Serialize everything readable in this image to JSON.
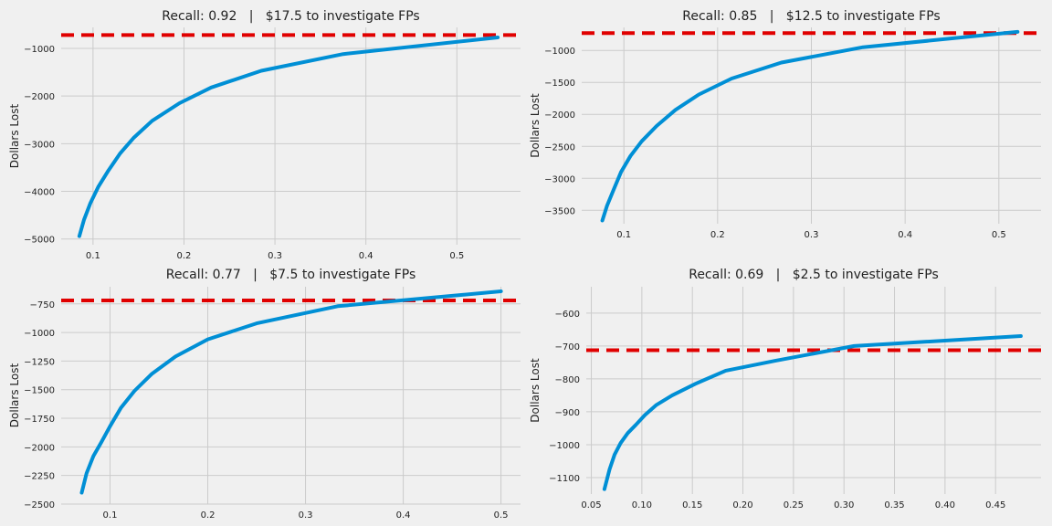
{
  "chart_data": [
    {
      "type": "line",
      "title": "Recall: 0.92   |   $17.5 to investigate FPs",
      "xlabel": "",
      "ylabel": "Dollars Lost",
      "xlim": [
        0.065,
        0.57
      ],
      "ylim": [
        -5120,
        -560
      ],
      "xticks": [
        0.1,
        0.2,
        0.3,
        0.4,
        0.5
      ],
      "xtick_labels": [
        "0.1",
        "0.2",
        "0.3",
        "0.4",
        "0.5"
      ],
      "yticks": [
        -5000,
        -4000,
        -3000,
        -2000,
        -1000
      ],
      "ytick_labels": [
        "−5000",
        "−4000",
        "−3000",
        "−2000",
        "−1000"
      ],
      "grid": true,
      "series": [
        {
          "x": [
            0.085,
            0.09,
            0.097,
            0.106,
            0.117,
            0.13,
            0.145,
            0.165,
            0.195,
            0.23,
            0.285,
            0.375,
            0.545
          ],
          "y": [
            -4940,
            -4600,
            -4250,
            -3900,
            -3560,
            -3200,
            -2870,
            -2520,
            -2150,
            -1820,
            -1470,
            -1120,
            -770
          ]
        }
      ],
      "baseline": {
        "y": -720,
        "color": "#e00000",
        "style": "dashed"
      }
    },
    {
      "type": "line",
      "title": "Recall: 0.85   |   $12.5 to investigate FPs",
      "xlabel": "",
      "ylabel": "Dollars Lost",
      "xlim": [
        0.055,
        0.545
      ],
      "ylim": [
        -3710,
        -640
      ],
      "xticks": [
        0.1,
        0.2,
        0.3,
        0.4,
        0.5
      ],
      "xtick_labels": [
        "0.1",
        "0.2",
        "0.3",
        "0.4",
        "0.5"
      ],
      "yticks": [
        -3500,
        -3000,
        -2500,
        -2000,
        -1500,
        -1000
      ],
      "ytick_labels": [
        "−3500",
        "−3000",
        "−2500",
        "−2000",
        "−1500",
        "−1000"
      ],
      "grid": true,
      "series": [
        {
          "x": [
            0.077,
            0.082,
            0.089,
            0.097,
            0.107,
            0.119,
            0.135,
            0.155,
            0.18,
            0.215,
            0.268,
            0.355,
            0.52
          ],
          "y": [
            -3660,
            -3430,
            -3180,
            -2900,
            -2650,
            -2420,
            -2180,
            -1930,
            -1690,
            -1440,
            -1190,
            -950,
            -710
          ]
        }
      ],
      "baseline": {
        "y": -730,
        "color": "#e00000",
        "style": "dashed"
      }
    },
    {
      "type": "line",
      "title": "Recall: 0.77   |   $7.5 to investigate FPs",
      "xlabel": "",
      "ylabel": "Dollars Lost",
      "xlim": [
        0.05,
        0.52
      ],
      "ylim": [
        -2500,
        -600
      ],
      "xticks": [
        0.1,
        0.2,
        0.3,
        0.4,
        0.5
      ],
      "xtick_labels": [
        "0.1",
        "0.2",
        "0.3",
        "0.4",
        "0.5"
      ],
      "yticks": [
        -2500,
        -2250,
        -2000,
        -1750,
        -1500,
        -1250,
        -1000,
        -750
      ],
      "ytick_labels": [
        "−2500",
        "−2250",
        "−2000",
        "−1750",
        "−1500",
        "−1250",
        "−1000",
        "−750"
      ],
      "grid": true,
      "series": [
        {
          "x": [
            0.071,
            0.076,
            0.083,
            0.091,
            0.1,
            0.111,
            0.125,
            0.143,
            0.167,
            0.2,
            0.25,
            0.333,
            0.5
          ],
          "y": [
            -2400,
            -2230,
            -2080,
            -1960,
            -1820,
            -1660,
            -1510,
            -1360,
            -1210,
            -1060,
            -920,
            -770,
            -640
          ]
        }
      ],
      "baseline": {
        "y": -720,
        "color": "#e00000",
        "style": "dashed"
      }
    },
    {
      "type": "line",
      "title": "Recall: 0.69   |   $2.5 to investigate FPs",
      "xlabel": "",
      "ylabel": "Dollars Lost",
      "xlim": [
        0.045,
        0.495
      ],
      "ylim": [
        -1150,
        -520
      ],
      "xticks": [
        0.05,
        0.1,
        0.15,
        0.2,
        0.25,
        0.3,
        0.35,
        0.4,
        0.45
      ],
      "xtick_labels": [
        "0.05",
        "0.10",
        "0.15",
        "0.20",
        "0.25",
        "0.30",
        "0.35",
        "0.40",
        "0.45"
      ],
      "yticks": [
        -1100,
        -1000,
        -900,
        -800,
        -700,
        -600
      ],
      "ytick_labels": [
        "−1100",
        "−1000",
        "−900",
        "−800",
        "−700",
        "−600"
      ],
      "grid": true,
      "series": [
        {
          "x": [
            0.063,
            0.068,
            0.073,
            0.079,
            0.086,
            0.094,
            0.103,
            0.114,
            0.13,
            0.153,
            0.183,
            0.232,
            0.31,
            0.475
          ],
          "y": [
            -1135,
            -1075,
            -1030,
            -995,
            -965,
            -940,
            -910,
            -880,
            -850,
            -815,
            -775,
            -745,
            -700,
            -670
          ]
        }
      ],
      "baseline": {
        "y": -713,
        "color": "#e00000",
        "style": "dashed"
      }
    }
  ]
}
